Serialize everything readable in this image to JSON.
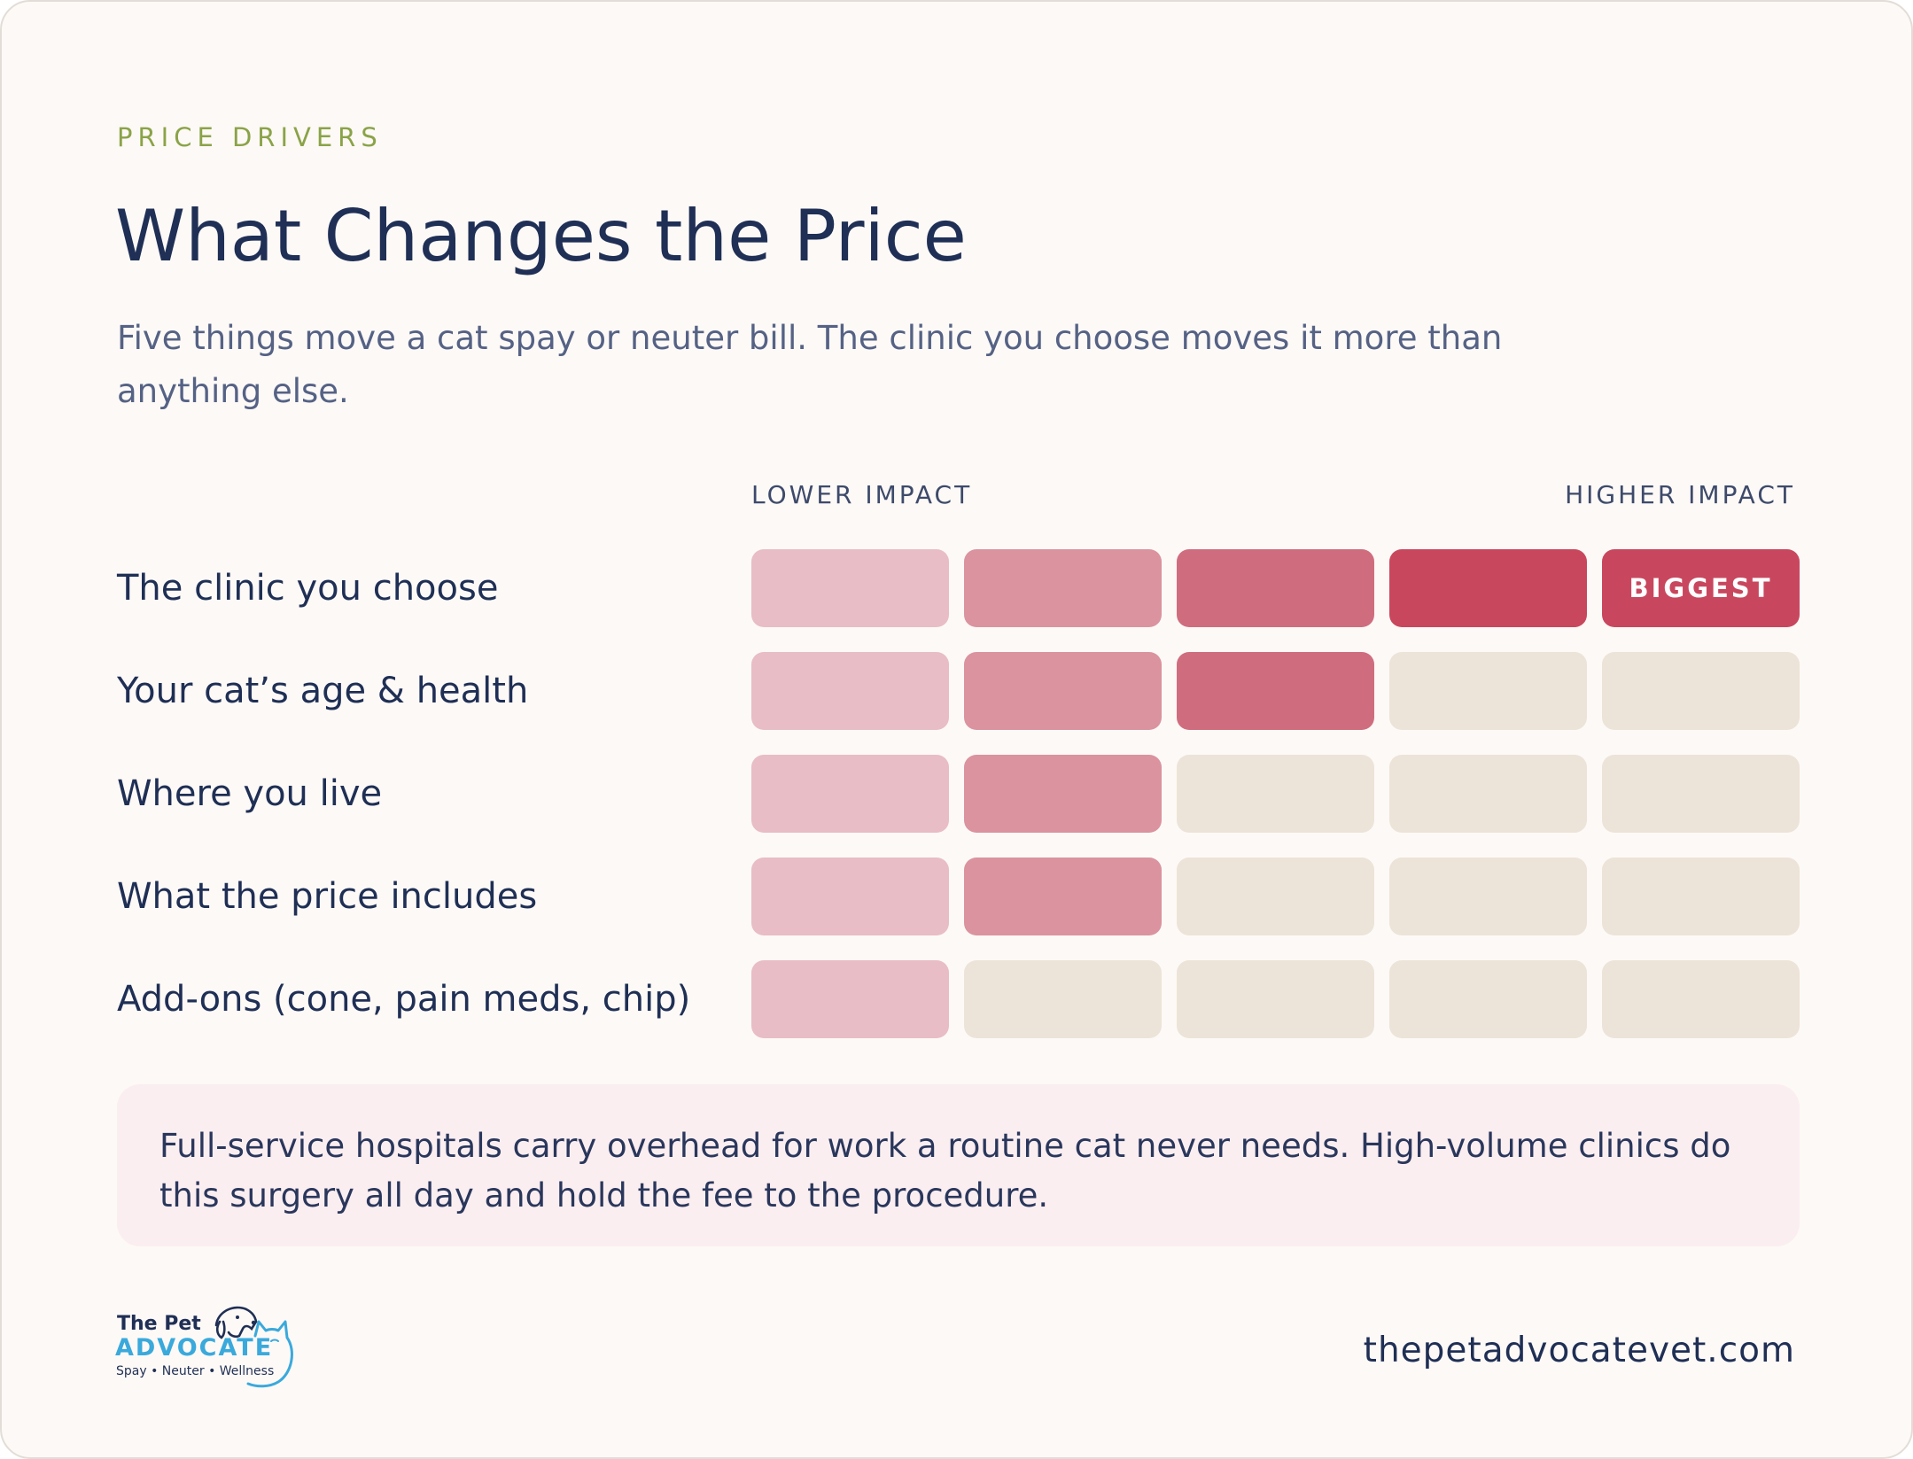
{
  "header": {
    "eyebrow": "PRICE DRIVERS",
    "title": "What Changes the Price",
    "subtitle": "Five things move a cat spay or neuter bill. The clinic you choose moves it more than anything else."
  },
  "chart_data": {
    "type": "heatmap",
    "scale_min_label": "LOWER IMPACT",
    "scale_max_label": "HIGHER IMPACT",
    "levels": 5,
    "rows": [
      {
        "label": "The clinic you choose",
        "value": 5,
        "badge": "BIGGEST"
      },
      {
        "label": "Your cat’s age & health",
        "value": 3
      },
      {
        "label": "Where you live",
        "value": 2
      },
      {
        "label": "What the price includes",
        "value": 2
      },
      {
        "label": "Add-ons (cone, pain meds, chip)",
        "value": 1
      }
    ],
    "colors": {
      "level_1": "#e8bdc5",
      "level_2": "#da939f",
      "level_3": "#cf6d7e",
      "level_4": "#c9475d",
      "level_5": "#c8475e",
      "empty": "#ece4d8"
    }
  },
  "note": {
    "text": "Full-service hospitals carry overhead for work a routine cat never needs. High-volume clinics do this surgery all day and hold the fee to the procedure."
  },
  "footer": {
    "logo": {
      "line1": "The Pet",
      "line2": "ADVOCATE",
      "line3": "Spay • Neuter • Wellness",
      "icon": "dog-cat-outline-icon"
    },
    "website": "thepetadvocatevet.com"
  }
}
